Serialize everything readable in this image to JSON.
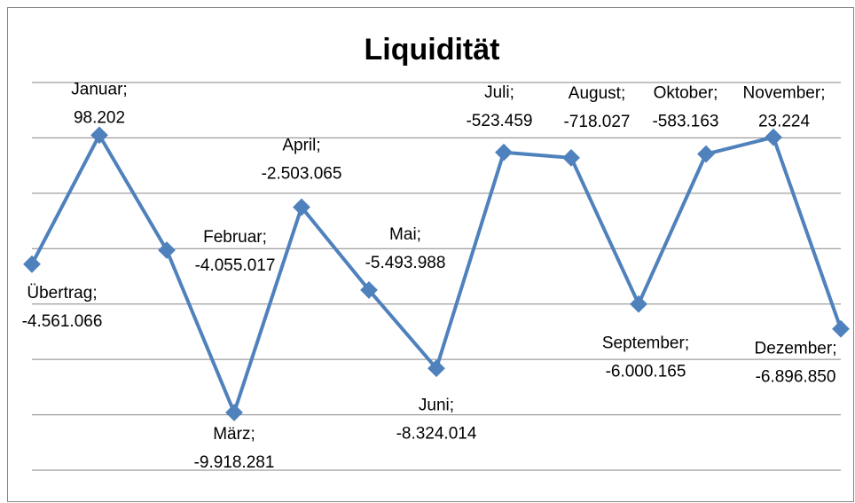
{
  "chart_data": {
    "type": "line",
    "title": "Liquidität",
    "categories": [
      "Übertrag",
      "Januar",
      "Februar",
      "März",
      "April",
      "Mai",
      "Juni",
      "Juli",
      "August",
      "September",
      "Oktober",
      "November",
      "Dezember"
    ],
    "data_label_separator": ";",
    "series": [
      {
        "color": "#4f81bd",
        "values": [
          -4561066,
          98202,
          -4055017,
          -9918281,
          -2503065,
          -5493988,
          -8324014,
          -523459,
          -718027,
          -6000165,
          -583163,
          23224,
          -6896850
        ],
        "value_labels": [
          "-4.561.066",
          "98.202",
          "-4.055.017",
          "-9.918.281",
          "-2.503.065",
          "-5.493.988",
          "-8.324.014",
          "-523.459",
          "-718.027",
          "-6.000.165",
          "-583.163",
          "23.224",
          "-6.896.850"
        ]
      }
    ],
    "ylim": [
      -12000000,
      2000000
    ],
    "yticks": [
      -12000000,
      -10000000,
      -8000000,
      -6000000,
      -4000000,
      -2000000,
      0,
      2000000
    ],
    "grid": true
  }
}
